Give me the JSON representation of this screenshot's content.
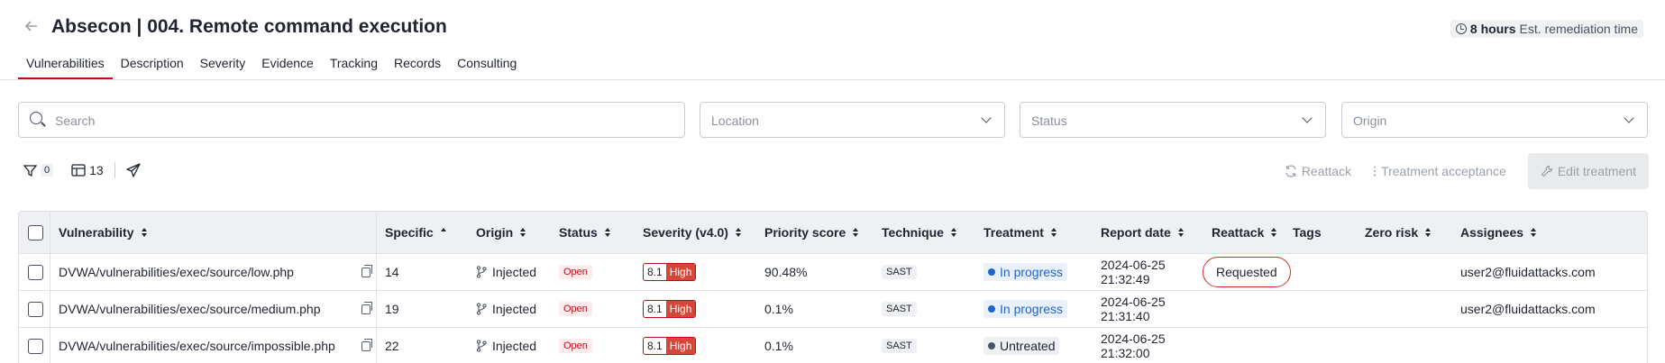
{
  "header": {
    "title": "Absecon | 004. Remote command execution",
    "remediation_hours": "8 hours",
    "remediation_label": "Est. remediation time"
  },
  "tabs": [
    {
      "label": "Vulnerabilities",
      "active": true
    },
    {
      "label": "Description"
    },
    {
      "label": "Severity"
    },
    {
      "label": "Evidence"
    },
    {
      "label": "Tracking"
    },
    {
      "label": "Records"
    },
    {
      "label": "Consulting"
    }
  ],
  "filters": {
    "search_placeholder": "Search",
    "location_placeholder": "Location",
    "status_placeholder": "Status",
    "origin_placeholder": "Origin"
  },
  "toolbar": {
    "filter_count": "0",
    "columns_count": "13"
  },
  "actions": {
    "reattack": "Reattack",
    "treatment_acceptance": "Treatment acceptance",
    "edit_treatment": "Edit treatment"
  },
  "table": {
    "columns": [
      "Vulnerability",
      "Specific",
      "Origin",
      "Status",
      "Severity (v4.0)",
      "Priority score",
      "Technique",
      "Treatment",
      "Report date",
      "Reattack",
      "Tags",
      "Zero risk",
      "Assignees"
    ],
    "rows": [
      {
        "vulnerability": "DVWA/vulnerabilities/exec/source/low.php",
        "specific": "14",
        "origin": "Injected",
        "status": "Open",
        "severity_score": "8.1",
        "severity_level": "High",
        "priority": "90.48%",
        "technique": "SAST",
        "treatment": "In progress",
        "date": "2024-06-25",
        "time": "21:32:49",
        "reattack": "Requested",
        "assignee": "user2@fluidattacks.com"
      },
      {
        "vulnerability": "DVWA/vulnerabilities/exec/source/medium.php",
        "specific": "19",
        "origin": "Injected",
        "status": "Open",
        "severity_score": "8.1",
        "severity_level": "High",
        "priority": "0.1%",
        "technique": "SAST",
        "treatment": "In progress",
        "date": "2024-06-25",
        "time": "21:31:40",
        "reattack": "",
        "assignee": "user2@fluidattacks.com"
      },
      {
        "vulnerability": "DVWA/vulnerabilities/exec/source/impossible.php",
        "specific": "22",
        "origin": "Injected",
        "status": "Open",
        "severity_score": "8.1",
        "severity_level": "High",
        "priority": "0.1%",
        "technique": "SAST",
        "treatment": "Untreated",
        "date": "2024-06-25",
        "time": "21:32:00",
        "reattack": "",
        "assignee": ""
      }
    ]
  },
  "colors": {
    "accent": "#bf0b1a",
    "in_progress": "#1e63c9",
    "high": "#d64538"
  },
  "icons": [
    "back-arrow-icon",
    "clock-icon",
    "search-icon",
    "chevron-down-icon",
    "filter-icon",
    "columns-icon",
    "send-icon",
    "refresh-icon",
    "more-icon",
    "wrench-icon",
    "copy-icon",
    "branch-icon",
    "sort-icon"
  ]
}
